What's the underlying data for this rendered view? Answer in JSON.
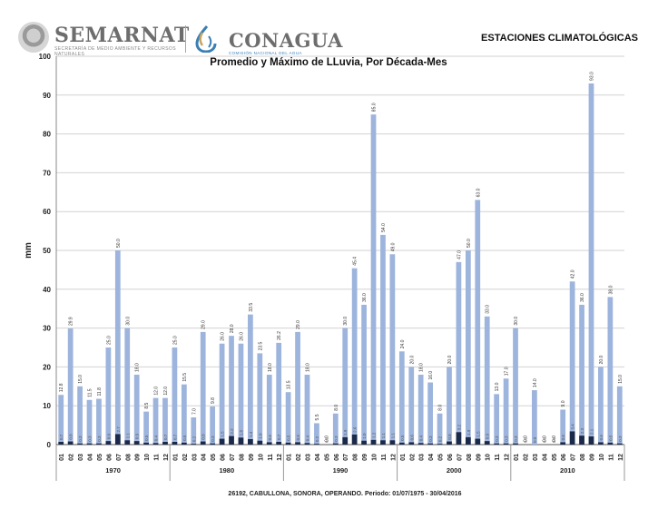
{
  "header": {
    "semarnat": "SEMARNAT",
    "semarnat_sub": "SECRETARÍA DE MEDIO AMBIENTE Y RECURSOS NATURALES",
    "conagua": "CONAGUA",
    "conagua_sub": "COMISIÓN NACIONAL DEL AGUA",
    "stations": "ESTACIONES CLIMATOLÓGICAS"
  },
  "colors": {
    "max_bar": "#9db4dd",
    "avg_bar": "#1b2a4a",
    "grid": "#d2d2d2",
    "text": "#222222"
  },
  "chart_data": {
    "type": "bar",
    "title": "Promedio y Máximo de LLuvia, Por Década-Mes",
    "ylabel": "mm",
    "xlabel": "26192, CABULLONA, SONORA, OPERANDO. Periodo: 01/07/1975 - 30/04/2016",
    "ylim": [
      0,
      100
    ],
    "yticks": [
      0,
      10,
      20,
      30,
      40,
      50,
      60,
      70,
      80,
      90,
      100
    ],
    "grid": true,
    "decades": [
      "1970",
      "1980",
      "1990",
      "2000",
      "2010"
    ],
    "months": [
      "01",
      "02",
      "03",
      "04",
      "05",
      "06",
      "07",
      "08",
      "09",
      "10",
      "11",
      "12"
    ],
    "series": [
      {
        "color": "#9db4dd",
        "values": [
          [
            12.8,
            29.9,
            15.0,
            11.5,
            11.8,
            25.0,
            50.0,
            30.0,
            18.0,
            8.5,
            12.0,
            12.0
          ],
          [
            25.0,
            15.5,
            7.0,
            29.0,
            9.8,
            26.0,
            28.0,
            26.0,
            33.5,
            23.5,
            18.0,
            26.2
          ],
          [
            13.5,
            29.0,
            18.0,
            5.5,
            0.0,
            8.0,
            30.0,
            45.4,
            36.0,
            85.0,
            54.0,
            49.0
          ],
          [
            24.0,
            20.0,
            18.0,
            16.0,
            8.0,
            20.0,
            47.0,
            50.0,
            63.0,
            33.0,
            13.0,
            17.0
          ],
          [
            30.0,
            0.0,
            14.0,
            0.0,
            0.0,
            9.0,
            42.0,
            36.0,
            93.0,
            20.0,
            38.0,
            15.0
          ]
        ],
        "labels": [
          [
            "12.8",
            "29.9",
            "15.0",
            "11.5",
            "11.8",
            "25.0",
            "50.0",
            "30.0",
            "18.0",
            "8.5",
            "12.0",
            "12.0"
          ],
          [
            "25.0",
            "15.5",
            "7.0",
            "29.0",
            "9.8",
            "26.0",
            "28.0",
            "26.0",
            "33.5",
            "23.5",
            "18.0",
            "26.2"
          ],
          [
            "13.5",
            "29.0",
            "18.0",
            "5.5",
            "0.0",
            "8.0",
            "30.0",
            "45.4",
            "36.0",
            "85.0",
            "54.0",
            "49.0"
          ],
          [
            "24.0",
            "20.0",
            "18.0",
            "16.0",
            "8.0",
            "20.0",
            "47.0",
            "50.0",
            "63.0",
            "33.0",
            "13.0",
            "17.0"
          ],
          [
            "30.0",
            "0.0",
            "14.0",
            "0.0",
            "0.0",
            "9.0",
            "42.0",
            "36.0",
            "93.0",
            "20.0",
            "38.0",
            "15.0"
          ]
        ]
      },
      {
        "color": "#1b2a4a",
        "values": [
          [
            0.7,
            0.8,
            0.3,
            0.3,
            0.3,
            0.9,
            2.7,
            1.1,
            0.9,
            0.5,
            0.4,
            0.7
          ],
          [
            0.7,
            0.5,
            0.2,
            0.8,
            0.3,
            1.5,
            2.2,
            1.8,
            1.4,
            1.0,
            0.6,
            0.7
          ],
          [
            0.5,
            0.6,
            0.4,
            0.2,
            0.0,
            0.3,
            1.9,
            2.6,
            1.0,
            1.2,
            1.1,
            1.1
          ],
          [
            0.5,
            0.6,
            0.4,
            0.3,
            0.2,
            0.8,
            3.2,
            1.9,
            1.5,
            0.9,
            0.3,
            0.3
          ],
          [
            0.3,
            0.0,
            0.0,
            0.0,
            0.0,
            0.6,
            3.4,
            2.3,
            2.1,
            0.6,
            0.5,
            0.3
          ]
        ],
        "labels": [
          [
            "0.7",
            "0.8",
            "0.3",
            "0.3",
            "0.3",
            "0.9",
            "2.7",
            "1.1",
            "0.9",
            "0.5",
            "0.4",
            "0.7"
          ],
          [
            "0.7",
            "0.5",
            "0.2",
            "0.8",
            "0.3",
            "1.5",
            "2.2",
            "1.8",
            "1.4",
            "1.0",
            "0.6",
            "0.7"
          ],
          [
            "0.5",
            "0.6",
            "0.4",
            "0.2",
            "0.0",
            "0.3",
            "1.9",
            "2.6",
            "1.0",
            "1.2",
            "1.1",
            "1.1"
          ],
          [
            "0.5",
            "0.6",
            "0.4",
            "0.3",
            "0.2",
            "0.8",
            "3.2",
            "1.9",
            "1.5",
            "0.9",
            "0.3",
            "0.3"
          ],
          [
            "0.3",
            "0.0",
            "0.0",
            "0.0",
            "0.0",
            "0.6",
            "3.4",
            "2.3",
            "2.1",
            "0.6",
            "0.5",
            "0.3"
          ]
        ]
      }
    ]
  }
}
